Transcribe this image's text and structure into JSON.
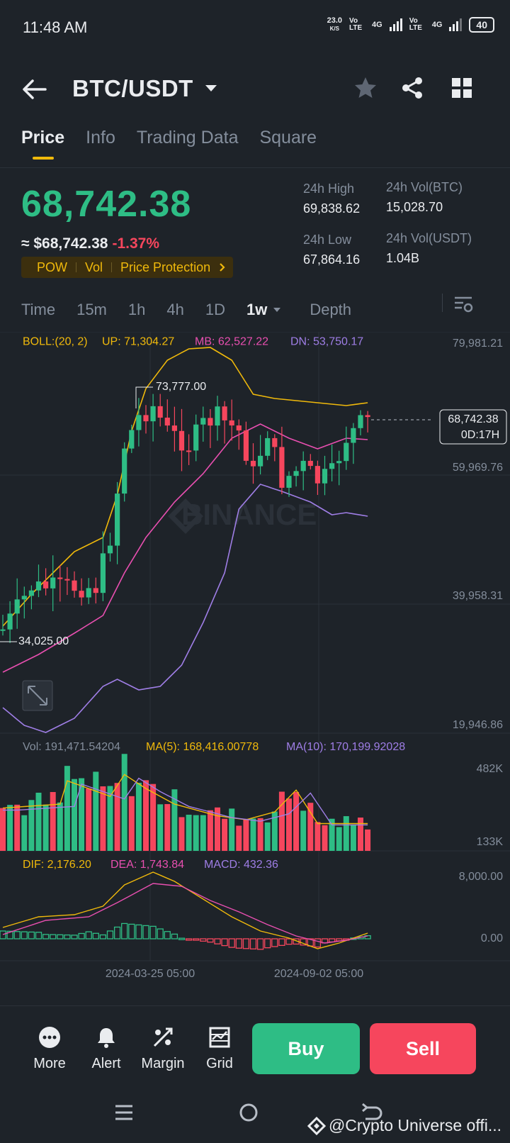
{
  "status_bar": {
    "time": "11:48 AM",
    "net_speed_value": "23.0",
    "net_speed_unit": "K/S",
    "volte1": "Vo LTE",
    "net1": "4G",
    "volte2": "Vo LTE",
    "net2": "4G",
    "battery": "40"
  },
  "header": {
    "pair": "BTC/USDT",
    "icons": [
      "back-arrow-icon",
      "chevron-down-icon",
      "star-icon",
      "share-icon",
      "grid-icon"
    ]
  },
  "tabs": [
    {
      "label": "Price",
      "active": true
    },
    {
      "label": "Info",
      "active": false
    },
    {
      "label": "Trading Data",
      "active": false
    },
    {
      "label": "Square",
      "active": false
    }
  ],
  "ticker": {
    "last_price": "68,742.38",
    "fiat_price": "≈ $68,742.38",
    "change": "-1.37%",
    "pills": [
      "POW",
      "Vol",
      "Price Protection"
    ],
    "high_label": "24h High",
    "high_value": "69,838.62",
    "low_label": "24h Low",
    "low_value": "67,864.16",
    "vol_btc_label": "24h Vol(BTC)",
    "vol_btc_value": "15,028.70",
    "vol_usdt_label": "24h Vol(USDT)",
    "vol_usdt_value": "1.04B",
    "colors": {
      "up": "#2ebd85",
      "down": "#f6465d",
      "accent": "#f0b90b"
    }
  },
  "intervals": {
    "items": [
      "Time",
      "15m",
      "1h",
      "4h",
      "1D",
      "1w",
      "Depth"
    ],
    "selected": "1w",
    "settings_icon": "chart-settings-icon"
  },
  "chart": {
    "boll_label": "BOLL:(20, 2)",
    "boll_up": "UP: 71,304.27",
    "boll_mb": "MB: 62,527.22",
    "boll_dn": "DN: 53,750.17",
    "price_axis": [
      "79,981.21",
      "59,969.76",
      "39,958.31",
      "19,946.86"
    ],
    "high_marker": "73,777.00",
    "low_marker": "34,025.00",
    "current_price_tag": "68,742.38",
    "countdown": "0D:17H",
    "watermark": "BINANCE",
    "vol_label": "Vol: 191,471.54204",
    "vol_ma5": "MA(5): 168,416.00778",
    "vol_ma10": "MA(10): 170,199.92028",
    "vol_axis": [
      "482K",
      "133K"
    ],
    "macd_dif": "DIF: 2,176.20",
    "macd_dea": "DEA: 1,743.84",
    "macd_macd": "MACD: 432.36",
    "macd_axis": [
      "8,000.00",
      "0.00"
    ],
    "dates": [
      "2024-03-25 05:00",
      "2024-09-02 05:00"
    ],
    "colors": {
      "up": "#2ebd85",
      "down": "#f6465d",
      "boll_up": "#f0b90b",
      "boll_mb": "#e84fb0",
      "boll_dn": "#9f7ee6"
    }
  },
  "bottom_toolbar": {
    "more": "More",
    "alert": "Alert",
    "margin": "Margin",
    "grid": "Grid",
    "buy": "Buy",
    "sell": "Sell"
  },
  "footer": {
    "credit": "@Crypto Universe offi..."
  }
}
